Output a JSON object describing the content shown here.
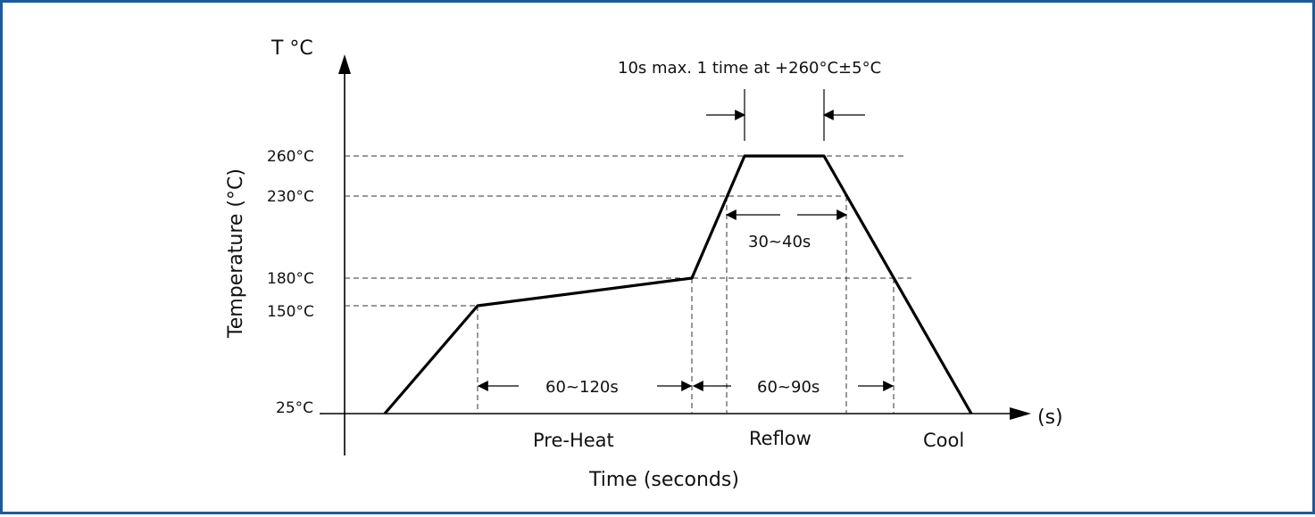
{
  "chart_data": {
    "type": "line",
    "title": "",
    "y_unit_label": "T °C",
    "x_unit_label": "(s)",
    "ylabel": "Temperature (°C)",
    "xlabel": "Time (seconds)",
    "y_ticks": [
      "260°C",
      "230°C",
      "180°C",
      "150°C",
      "25°C"
    ],
    "phases": [
      "Pre-Heat",
      "Reflow",
      "Cool"
    ],
    "annotations": {
      "peak_note": "10s max. 1 time at +260°C±5°C",
      "above_230": "30~40s",
      "preheat_duration": "60~120s",
      "above_180": "60~90s"
    },
    "profile": [
      {
        "stage": "start",
        "temp_c": 25
      },
      {
        "stage": "preheat-start",
        "temp_c": 150
      },
      {
        "stage": "preheat-end",
        "temp_c": 180
      },
      {
        "stage": "peak-start",
        "temp_c": 260
      },
      {
        "stage": "peak-end",
        "temp_c": 260
      },
      {
        "stage": "end",
        "temp_c": 25
      }
    ],
    "line_color": "#000000"
  },
  "colors": {
    "border": "#1f5a98"
  }
}
